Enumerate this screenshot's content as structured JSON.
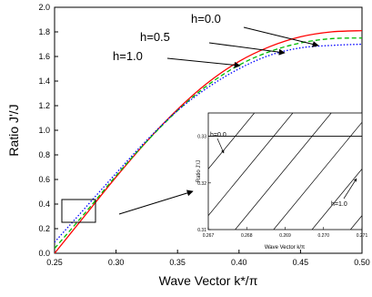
{
  "chart_data": {
    "type": "line",
    "xlabel": "Wave Vector k*/π",
    "ylabel": "Ratio J'/J",
    "xlim": [
      0.25,
      0.5
    ],
    "ylim": [
      0.0,
      2.0
    ],
    "x_ticks": [
      "0.25",
      "0.30",
      "0.35",
      "0.40",
      "0.45",
      "0.50"
    ],
    "y_ticks": [
      "0.0",
      "0.2",
      "0.4",
      "0.6",
      "0.8",
      "1.0",
      "1.2",
      "1.4",
      "1.6",
      "1.8",
      "2.0"
    ],
    "grid": false,
    "x": [
      0.25,
      0.275,
      0.3,
      0.325,
      0.35,
      0.375,
      0.4,
      0.425,
      0.45,
      0.475,
      0.5
    ],
    "series": [
      {
        "name": "h=0.0",
        "color": "#ff0000",
        "dash": "solid",
        "values": [
          0.0,
          0.31,
          0.62,
          0.91,
          1.17,
          1.39,
          1.56,
          1.68,
          1.76,
          1.8,
          1.81
        ]
      },
      {
        "name": "h=0.5",
        "color": "#00bb00",
        "dash": "dashed",
        "values": [
          0.04,
          0.33,
          0.63,
          0.91,
          1.16,
          1.37,
          1.53,
          1.64,
          1.71,
          1.745,
          1.75
        ]
      },
      {
        "name": "h=1.0",
        "color": "#0000ff",
        "dash": "dotted",
        "values": [
          0.09,
          0.37,
          0.65,
          0.92,
          1.16,
          1.35,
          1.5,
          1.61,
          1.67,
          1.69,
          1.7
        ]
      }
    ],
    "annotations": [
      "h=0.0",
      "h=0.5",
      "h=1.0"
    ],
    "inset": {
      "xlabel": "Wave Vector k/π",
      "ylabel": "Ratio J'/J",
      "xlim": [
        0.267,
        0.271
      ],
      "ylim": [
        0.31,
        0.335
      ],
      "x_ticks": [
        "0.267",
        "0.268",
        "0.269",
        "0.270",
        "0.271"
      ],
      "y_ticks": [
        "0.31",
        "0.32",
        "0.33"
      ],
      "horizontal_line_y": 0.33,
      "hatch_slope_per_unit_x": 10,
      "hatch_x_intercepts_at_y_min": [
        0.2657,
        0.2667,
        0.2677,
        0.2687,
        0.2697,
        0.2707,
        0.2717,
        0.2727,
        0.2737
      ],
      "labels": [
        "h=0.0",
        "h=1.0"
      ]
    }
  }
}
